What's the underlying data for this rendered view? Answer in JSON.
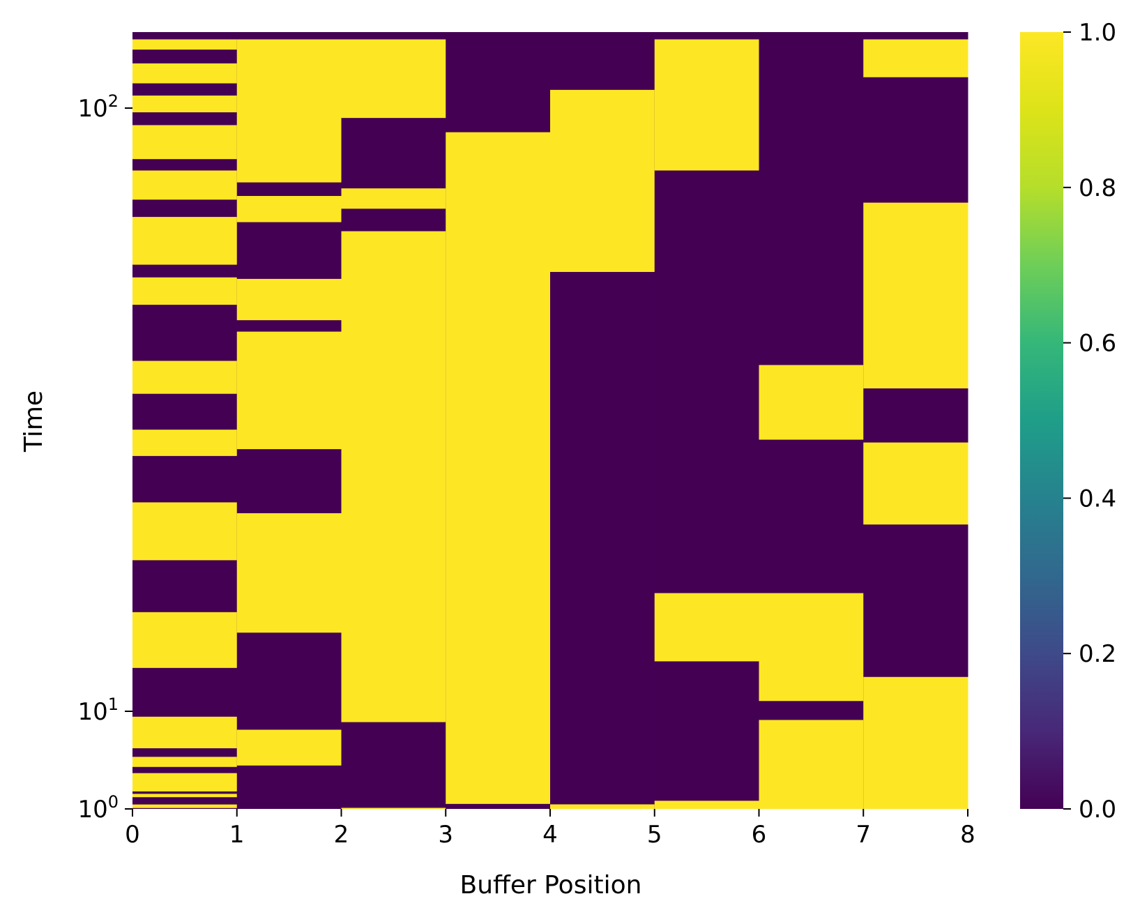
{
  "chart_data": {
    "type": "heatmap",
    "title": "",
    "xlabel": "Buffer Position",
    "ylabel": "Time",
    "x_ticks": [
      "0",
      "1",
      "2",
      "3",
      "4",
      "5",
      "6",
      "7",
      "8"
    ],
    "y_scale": "log",
    "y_ticks": [
      {
        "value": 1,
        "base": "10",
        "exp": "0"
      },
      {
        "value": 10,
        "base": "10",
        "exp": "1"
      },
      {
        "value": 100,
        "base": "10",
        "exp": "2"
      }
    ],
    "colorbar": {
      "colormap": "viridis",
      "range": [
        0.0,
        1.0
      ],
      "ticks": [
        "0.0",
        "0.2",
        "0.4",
        "0.6",
        "0.8",
        "1.0"
      ]
    },
    "colors": {
      "low": "#440154",
      "high": "#fde725"
    },
    "time_range": [
      1,
      130
    ],
    "columns": [
      {
        "position": 0,
        "high_intervals": [
          [
            1.08,
            1.41
          ],
          [
            2.08,
            2.39
          ],
          [
            2.61,
            4.3
          ],
          [
            4.87,
            5.8
          ],
          [
            6.59,
            9.5
          ],
          [
            11.8,
            14.6
          ],
          [
            17.8,
            22.2
          ],
          [
            26.5,
            29.3
          ],
          [
            33.6,
            38.1
          ],
          [
            47.2,
            52.4
          ],
          [
            55.0,
            66.0
          ],
          [
            70.5,
            78.8
          ],
          [
            82.3,
            93.7
          ],
          [
            98.4,
            104.9
          ],
          [
            109.9,
            118.6
          ],
          [
            125.0,
            130.0
          ]
        ]
      },
      {
        "position": 1,
        "high_intervals": [
          [
            5.0,
            8.3
          ],
          [
            13.5,
            21.3
          ],
          [
            27.2,
            42.6
          ],
          [
            44.5,
            52.1
          ],
          [
            64.7,
            71.5
          ],
          [
            75.3,
            130.0
          ]
        ]
      },
      {
        "position": 2,
        "high_intervals": [
          [
            1.0,
            1.1
          ],
          [
            9.0,
            62.5
          ],
          [
            68.1,
            73.6
          ],
          [
            96.3,
            130.0
          ]
        ]
      },
      {
        "position": 3,
        "high_intervals": [
          [
            1.46,
            91.2
          ]
        ]
      },
      {
        "position": 4,
        "high_intervals": [
          [
            1.0,
            1.42
          ],
          [
            53.5,
            107.2
          ]
        ]
      },
      {
        "position": 5,
        "high_intervals": [
          [
            1.0,
            1.75
          ],
          [
            12.1,
            15.7
          ],
          [
            78.8,
            130.0
          ]
        ]
      },
      {
        "position": 6,
        "high_intervals": [
          [
            1.0,
            9.2
          ],
          [
            10.4,
            15.7
          ],
          [
            28.2,
            37.5
          ]
        ]
      },
      {
        "position": 7,
        "high_intervals": [
          [
            1.0,
            11.4
          ],
          [
            20.4,
            27.9
          ],
          [
            34.3,
            69.7
          ],
          [
            112.5,
            130.0
          ]
        ]
      }
    ]
  }
}
